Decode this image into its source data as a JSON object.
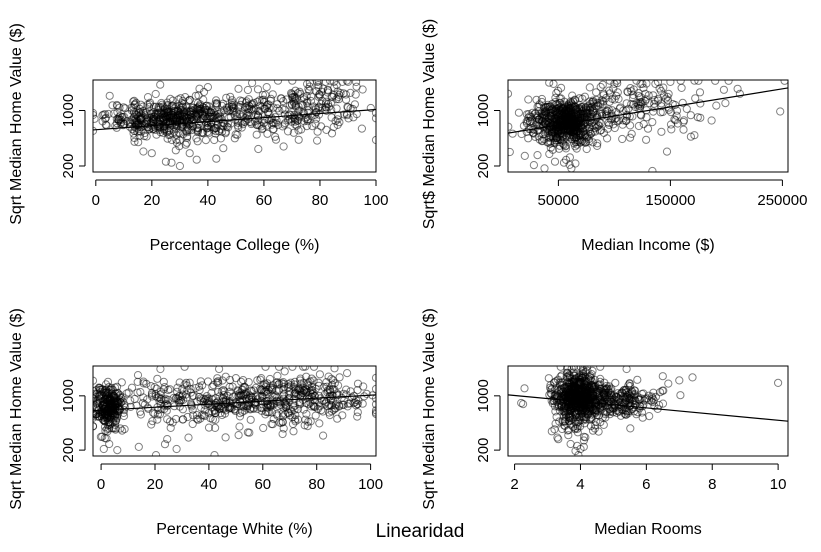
{
  "figure": {
    "title": "Linearidad"
  },
  "chart_data": [
    {
      "type": "scatter",
      "xlabel": "Percentage College (%)",
      "ylabel": "Sqrt Median Home Value ($)",
      "x_ticks": [
        0,
        20,
        40,
        60,
        80,
        100
      ],
      "y_ticks": [
        200,
        1000
      ],
      "xlim": [
        -1,
        100
      ],
      "ylim": [
        150,
        1700
      ],
      "trend": {
        "x": [
          -1,
          100
        ],
        "y": [
          650,
          1020
        ]
      },
      "clusters": [
        {
          "x_center": 28,
          "x_spread": 12,
          "y_center": 850,
          "y_spread": 170,
          "n": 520
        },
        {
          "x_center": 65,
          "x_spread": 16,
          "y_center": 980,
          "y_spread": 230,
          "n": 240
        },
        {
          "x_center": 82,
          "x_spread": 7,
          "y_center": 1300,
          "y_spread": 230,
          "n": 60
        }
      ],
      "points": [
        [
          27,
          230
        ],
        [
          30,
          200
        ],
        [
          25,
          240
        ],
        [
          17,
          350
        ],
        [
          20,
          330
        ],
        [
          36,
          260
        ],
        [
          43,
          270
        ],
        [
          58,
          380
        ],
        [
          82,
          1650
        ],
        [
          85,
          1650
        ],
        [
          88,
          1650
        ],
        [
          90,
          1650
        ],
        [
          79,
          1650
        ],
        [
          23,
          1580
        ],
        [
          40,
          1520
        ],
        [
          61,
          1520
        ]
      ]
    },
    {
      "type": "scatter",
      "xlabel": "Median Income ($)",
      "ylabel": "Sqrt$ Median Home Value ($)",
      "x_ticks": [
        50000,
        150000,
        250000
      ],
      "y_ticks": [
        200,
        1000
      ],
      "xlim": [
        5000,
        255000
      ],
      "ylim": [
        150,
        1700
      ],
      "trend": {
        "x": [
          5000,
          255000
        ],
        "y": [
          600,
          1500
        ]
      },
      "clusters": [
        {
          "x_center": 55000,
          "x_spread": 15000,
          "y_center": 780,
          "y_spread": 190,
          "n": 640
        },
        {
          "x_center": 110000,
          "x_spread": 35000,
          "y_center": 1100,
          "y_spread": 280,
          "n": 200
        }
      ],
      "points": [
        [
          252000,
          1680
        ],
        [
          248000,
          980
        ],
        [
          20000,
          300
        ],
        [
          55000,
          230
        ],
        [
          47000,
          240
        ],
        [
          60000,
          210
        ],
        [
          175000,
          1680
        ],
        [
          190000,
          1680
        ],
        [
          202000,
          1680
        ],
        [
          150000,
          1650
        ],
        [
          125000,
          1600
        ],
        [
          100000,
          1600
        ],
        [
          160000,
          1500
        ],
        [
          210000,
          1480
        ]
      ]
    },
    {
      "type": "scatter",
      "xlabel": "Percentage White (%)",
      "ylabel": "Sqrt Median Home Value ($)",
      "x_ticks": [
        0,
        20,
        40,
        60,
        80,
        100
      ],
      "y_ticks": [
        200,
        1000
      ],
      "xlim": [
        -3,
        102
      ],
      "ylim": [
        150,
        1700
      ],
      "trend": {
        "x": [
          -3,
          102
        ],
        "y": [
          720,
          1020
        ]
      },
      "clusters": [
        {
          "x_center": 3,
          "x_spread": 2.5,
          "y_center": 780,
          "y_spread": 200,
          "n": 260
        },
        {
          "x_center": 45,
          "x_spread": 24,
          "y_center": 880,
          "y_spread": 230,
          "n": 460
        },
        {
          "x_center": 78,
          "x_spread": 12,
          "y_center": 1050,
          "y_spread": 250,
          "n": 160
        }
      ],
      "points": [
        [
          1,
          210
        ],
        [
          3,
          260
        ],
        [
          2,
          320
        ],
        [
          6,
          200
        ],
        [
          14,
          230
        ],
        [
          28,
          210
        ],
        [
          55,
          390
        ],
        [
          61,
          1680
        ],
        [
          71,
          1680
        ],
        [
          75,
          1680
        ],
        [
          79,
          1680
        ],
        [
          66,
          1680
        ],
        [
          31,
          1680
        ],
        [
          22,
          1620
        ]
      ]
    },
    {
      "type": "scatter",
      "xlabel": "Median Rooms",
      "ylabel": "Sqrt Median Home Value ($)",
      "x_ticks": [
        2,
        4,
        6,
        8,
        10
      ],
      "y_ticks": [
        200,
        1000
      ],
      "xlim": [
        1.8,
        10.3
      ],
      "ylim": [
        150,
        1700
      ],
      "trend": {
        "x": [
          1.8,
          10.3
        ],
        "y": [
          1020,
          550
        ]
      },
      "clusters": [
        {
          "x_center": 3.9,
          "x_spread": 0.35,
          "y_center": 950,
          "y_spread": 280,
          "n": 560
        },
        {
          "x_center": 4.8,
          "x_spread": 0.8,
          "y_center": 900,
          "y_spread": 170,
          "n": 300
        }
      ],
      "points": [
        [
          10,
          1280
        ],
        [
          3.4,
          1680
        ],
        [
          3.6,
          1680
        ],
        [
          3.8,
          1680
        ],
        [
          4.0,
          1680
        ],
        [
          4.2,
          1680
        ],
        [
          4.6,
          1680
        ],
        [
          5.4,
          1620
        ],
        [
          3.9,
          240
        ],
        [
          4.0,
          210
        ],
        [
          4.1,
          230
        ],
        [
          3.7,
          260
        ],
        [
          3.3,
          330
        ],
        [
          6.5,
          1440
        ],
        [
          7.0,
          1340
        ],
        [
          7.4,
          1410
        ],
        [
          2.3,
          1160
        ],
        [
          2.2,
          860
        ]
      ]
    }
  ]
}
